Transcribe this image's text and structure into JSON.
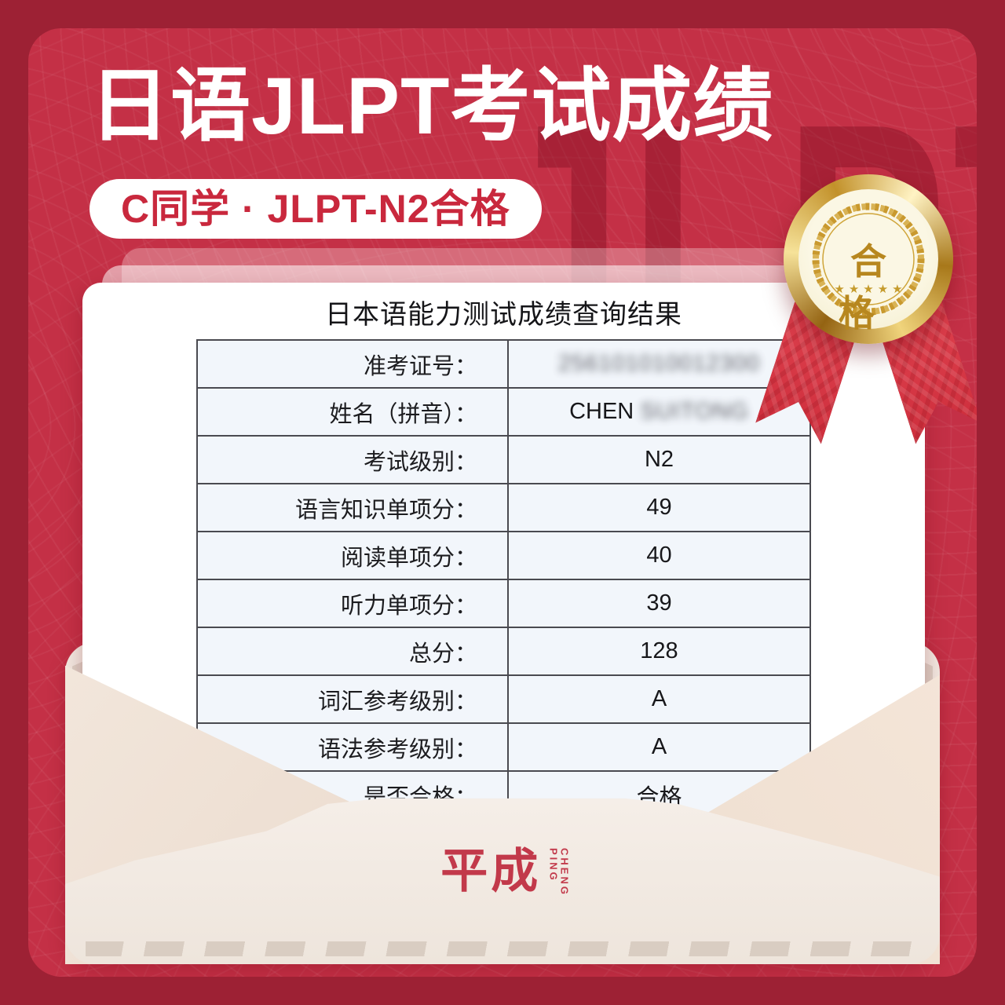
{
  "background": {
    "watermark": "JLPT"
  },
  "header": {
    "title": "日语JLPT考试成绩",
    "badge": "C同学 · JLPT-N2合格"
  },
  "medal": {
    "label": "合格",
    "stars": "★★★★★"
  },
  "card": {
    "title": "日本语能力测试成绩查询结果",
    "rows": [
      {
        "label": "准考证号：",
        "value": "256101010012300",
        "blur": "full"
      },
      {
        "label": "姓名（拼音）：",
        "value": "CHEN SUITONG",
        "clear": "CHEN",
        "blurred": "SUITONG",
        "blur": "partial"
      },
      {
        "label": "考试级别：",
        "value": "N2",
        "blur": "none"
      },
      {
        "label": "语言知识单项分：",
        "value": "49",
        "blur": "none"
      },
      {
        "label": "阅读单项分：",
        "value": "40",
        "blur": "none"
      },
      {
        "label": "听力单项分：",
        "value": "39",
        "blur": "none"
      },
      {
        "label": "总分：",
        "value": "128",
        "blur": "none"
      },
      {
        "label": "词汇参考级别：",
        "value": "A",
        "blur": "none"
      },
      {
        "label": "语法参考级别：",
        "value": "A",
        "blur": "none"
      },
      {
        "label": "是否合格：",
        "value": "合格",
        "blur": "none"
      }
    ]
  },
  "footer": {
    "logo_cn": "平成",
    "logo_en": "CHENG\nPING"
  },
  "colors": {
    "outer_red": "#9d2134",
    "inner_red": "#c43046",
    "accent_red": "#c9283d",
    "gold": "#c2912a",
    "envelope_beige": "#f2e9e1",
    "cell_blue": "#f2f6fb"
  }
}
